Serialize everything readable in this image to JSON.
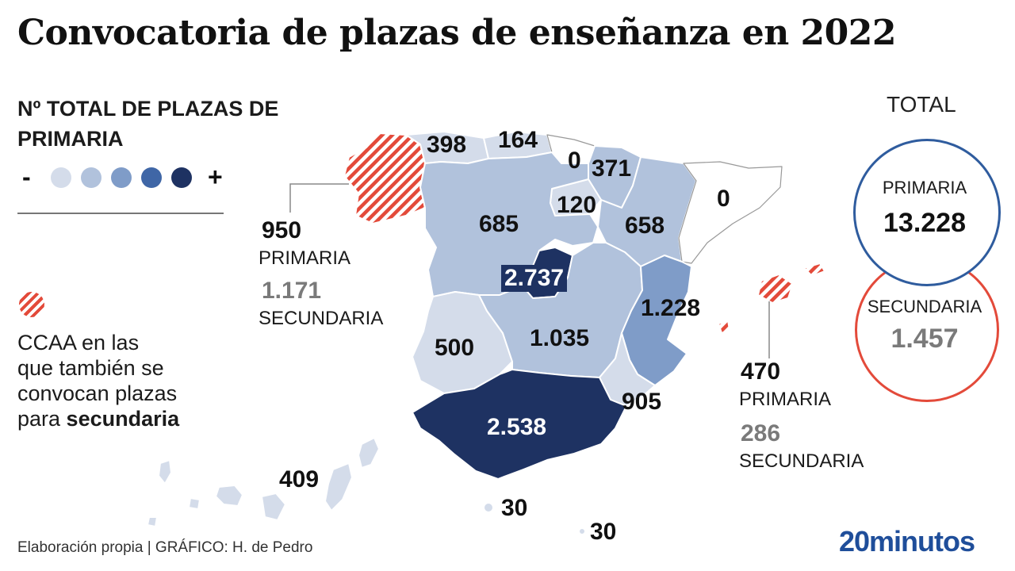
{
  "title": "Convocatoria de plazas de enseñanza en 2022",
  "legend": {
    "title": "Nº TOTAL DE PLAZAS DE PRIMARIA",
    "minus": "-",
    "plus": "+",
    "scale_colors": [
      "#d4dcea",
      "#b1c2dc",
      "#7f9cc8",
      "#3f66a6",
      "#1e3262"
    ],
    "hatch_color": "#e34a3a",
    "hatch_text_line1": "CCAA en las",
    "hatch_text_line2": "que también se",
    "hatch_text_line3": "convocan plazas",
    "hatch_text_pre": "para ",
    "hatch_text_bold": "secundaria"
  },
  "regions": {
    "galicia": "950",
    "asturias": "398",
    "cantabria": "164",
    "pais_vasco": "0",
    "navarra": "371",
    "la_rioja": "120",
    "aragon": "658",
    "cataluna": "0",
    "castilla_leon": "685",
    "madrid": "2.737",
    "extremadura": "500",
    "castilla_la_mancha": "1.035",
    "valencia": "1.228",
    "murcia": "905",
    "andalucia": "2.538",
    "canarias": "409",
    "ceuta": "30",
    "melilla": "30",
    "baleares": "470"
  },
  "callouts": {
    "galicia": {
      "primaria_value": "950",
      "primaria_label": "PRIMARIA",
      "secundaria_value": "1.171",
      "secundaria_label": "SECUNDARIA"
    },
    "baleares": {
      "primaria_value": "470",
      "primaria_label": "PRIMARIA",
      "secundaria_value": "286",
      "secundaria_label": "SECUNDARIA"
    }
  },
  "totals": {
    "header": "TOTAL",
    "primaria_label": "PRIMARIA",
    "primaria_value": "13.228",
    "secundaria_label": "SECUNDARIA",
    "secundaria_value": "1.457",
    "primaria_color": "#2f5c9e",
    "secundaria_color": "#e34a3a"
  },
  "footer": "Elaboración propia  |  GRÁFICO: H. de Pedro",
  "brand": "20minutos"
}
